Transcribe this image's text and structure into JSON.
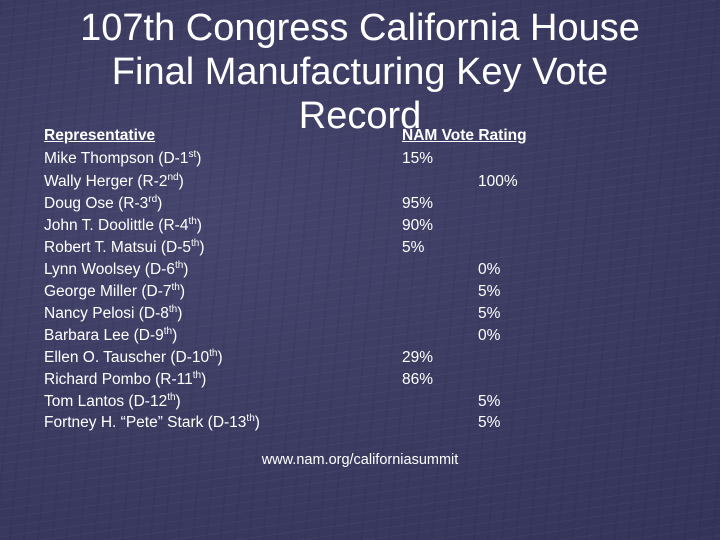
{
  "title_lines": [
    "107th Congress California House",
    "Final Manufacturing Key Vote",
    "Record"
  ],
  "headers": {
    "representative": "Representative",
    "rating": "NAM Vote Rating"
  },
  "rows": [
    {
      "name": "Mike Thompson (D-1",
      "sup": "st",
      "close": ")",
      "rating": "15%",
      "col": 1
    },
    {
      "name": "Wally Herger (R-2",
      "sup": "nd",
      "close": ")",
      "rating": "100%",
      "col": 2
    },
    {
      "name": "Doug Ose (R-3",
      "sup": "rd",
      "close": ")",
      "rating": "95%",
      "col": 1
    },
    {
      "name": "John T. Doolittle (R-4",
      "sup": "th",
      "close": ")",
      "rating": "90%",
      "col": 1
    },
    {
      "name": "Robert T. Matsui (D-5",
      "sup": "th",
      "close": ")",
      "rating": "5%",
      "col": 1
    },
    {
      "name": "Lynn Woolsey (D-6",
      "sup": "th",
      "close": ")",
      "rating": "0%",
      "col": 2
    },
    {
      "name": "George Miller (D-7",
      "sup": "th",
      "close": ")",
      "rating": "5%",
      "col": 2
    },
    {
      "name": "Nancy Pelosi (D-8",
      "sup": "th",
      "close": ")",
      "rating": "5%",
      "col": 2
    },
    {
      "name": "Barbara Lee (D-9",
      "sup": "th",
      "close": ")",
      "rating": "0%",
      "col": 2
    },
    {
      "name": "Ellen O. Tauscher (D-10",
      "sup": "th",
      "close": ")",
      "rating": "29%",
      "col": 1
    },
    {
      "name": "Richard Pombo (R-11",
      "sup": "th",
      "close": ")",
      "rating": "86%",
      "col": 1
    },
    {
      "name": "Tom Lantos (D-12",
      "sup": "th",
      "close": ")",
      "rating": "5%",
      "col": 2
    },
    {
      "name": "Fortney H. “Pete” Stark (D-13",
      "sup": "th",
      "close": ")",
      "rating": "5%",
      "col": 2
    }
  ],
  "source": "www.nam.org/californiasummit",
  "colors": {
    "background": "#3d3d64",
    "text": "#ffffff"
  }
}
